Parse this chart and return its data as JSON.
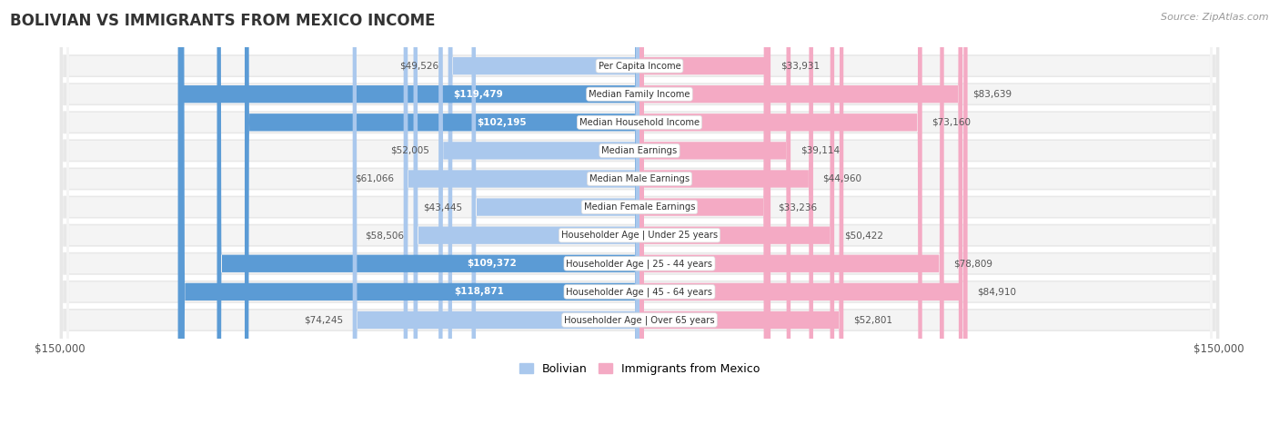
{
  "title": "BOLIVIAN VS IMMIGRANTS FROM MEXICO INCOME",
  "source": "Source: ZipAtlas.com",
  "categories": [
    "Per Capita Income",
    "Median Family Income",
    "Median Household Income",
    "Median Earnings",
    "Median Male Earnings",
    "Median Female Earnings",
    "Householder Age | Under 25 years",
    "Householder Age | 25 - 44 years",
    "Householder Age | 45 - 64 years",
    "Householder Age | Over 65 years"
  ],
  "bolivian_values": [
    49526,
    119479,
    102195,
    52005,
    61066,
    43445,
    58506,
    109372,
    118871,
    74245
  ],
  "mexico_values": [
    33931,
    83639,
    73160,
    39114,
    44960,
    33236,
    50422,
    78809,
    84910,
    52801
  ],
  "bolivian_light": "#aac8ed",
  "bolivian_dark": "#5b9bd5",
  "mexico_light": "#f4aac4",
  "mexico_dark": "#e8558a",
  "max_value": 150000,
  "background_color": "#ffffff",
  "row_bg_outer": "#e8e8e8",
  "row_bg_inner": "#f4f4f4",
  "legend_bolivian": "Bolivian",
  "legend_mexico": "Immigrants from Mexico",
  "label_threshold": 90000,
  "label_color_inside": "#ffffff",
  "label_color_outside": "#555555"
}
